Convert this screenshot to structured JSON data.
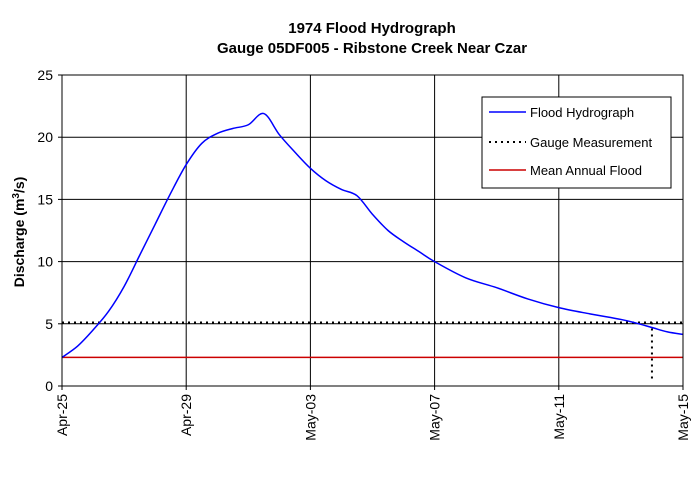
{
  "chart_data": {
    "type": "line",
    "title": "1974 Flood Hydrograph",
    "subtitle": "Gauge 05DF005 - Ribstone Creek Near Czar",
    "ylabel_main": "Discharge (m",
    "ylabel_sup": "3",
    "ylabel_end": "/s)",
    "xlabel": "",
    "x_ticks": [
      "Apr-25",
      "Apr-29",
      "May-03",
      "May-07",
      "May-11",
      "May-15"
    ],
    "y_ticks": [
      "0",
      "5",
      "10",
      "15",
      "20",
      "25"
    ],
    "xlim": [
      "Apr-25",
      "May-15"
    ],
    "ylim": [
      0,
      25
    ],
    "grid": true,
    "legend_position": "top-right",
    "colors": {
      "flood_hydrograph": "#0000ff",
      "gauge_measurement": "#000000",
      "mean_annual_flood": "#cc0000"
    },
    "series": [
      {
        "name": "Flood Hydrograph",
        "style": "solid",
        "x_days_from_apr25": [
          0,
          0.5,
          1,
          1.5,
          2,
          2.5,
          3,
          3.5,
          4,
          4.5,
          5,
          5.5,
          6,
          6.5,
          7,
          7.5,
          8,
          8.5,
          9,
          9.5,
          10,
          10.5,
          11,
          11.5,
          12,
          13,
          14,
          15,
          16,
          17,
          18,
          18.5,
          19,
          19.5,
          20
        ],
        "x": [
          "Apr-25",
          "Apr-25",
          "Apr-26",
          "Apr-26",
          "Apr-27",
          "Apr-27",
          "Apr-28",
          "Apr-28",
          "Apr-29",
          "Apr-29",
          "Apr-30",
          "Apr-30",
          "May-01",
          "May-01",
          "May-02",
          "May-02",
          "May-03",
          "May-03",
          "May-04",
          "May-04",
          "May-05",
          "May-05",
          "May-06",
          "May-06",
          "May-07",
          "May-08",
          "May-09",
          "May-10",
          "May-11",
          "May-12",
          "May-13",
          "May-13",
          "May-14",
          "May-14",
          "May-15"
        ],
        "values": [
          2.3,
          3.2,
          4.5,
          6.0,
          8.0,
          10.5,
          13.0,
          15.5,
          17.8,
          19.5,
          20.3,
          20.7,
          21.0,
          21.9,
          20.2,
          18.8,
          17.5,
          16.5,
          15.8,
          15.3,
          13.8,
          12.5,
          11.6,
          10.8,
          10.0,
          8.7,
          7.9,
          7.0,
          6.3,
          5.8,
          5.35,
          5.05,
          4.7,
          4.35,
          4.15
        ]
      },
      {
        "name": "Gauge Measurement",
        "style": "dotted",
        "horizontal_value": 5.1,
        "vertical_at": "May-14"
      },
      {
        "name": "Mean Annual Flood",
        "style": "solid",
        "horizontal_value": 2.3
      }
    ]
  }
}
